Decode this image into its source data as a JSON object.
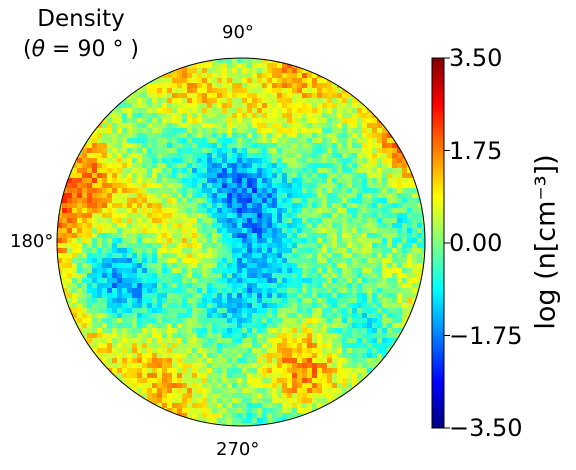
{
  "chart_data": {
    "type": "heatmap",
    "projection": "polar",
    "title_line1": "Density",
    "title_line2_prefix": "(",
    "title_theta": "θ",
    "title_line2_suffix": " = 90 ° )",
    "angle_labels": {
      "top": "90°",
      "left": "180°",
      "bottom": "270°"
    },
    "colorbar": {
      "label": "log (n[cm⁻³])",
      "colormap": "jet",
      "range": [
        -3.5,
        3.5
      ],
      "ticks": [
        "3.50",
        "1.75",
        "0.00",
        "−1.75",
        "−3.50"
      ],
      "tick_values": [
        3.5,
        1.75,
        0.0,
        -1.75,
        -3.5
      ]
    },
    "background_value": -0.7,
    "field_description_is_visual_only": true
  },
  "colors": {
    "jet_stops": [
      "#00007f",
      "#0000ff",
      "#007fff",
      "#00ffff",
      "#7fff7f",
      "#ffff00",
      "#ff7f00",
      "#ff0000",
      "#7f0000"
    ]
  }
}
